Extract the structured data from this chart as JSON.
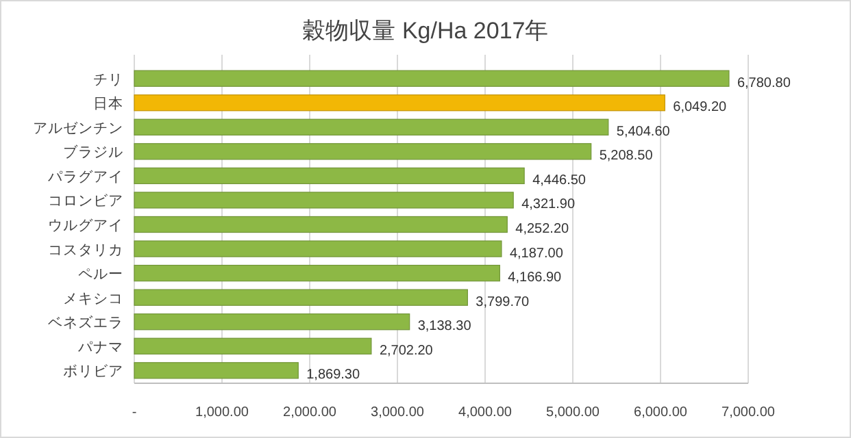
{
  "chart_data": {
    "type": "bar",
    "orientation": "horizontal",
    "title": "穀物収量 Kg/Ha  2017年",
    "categories": [
      "チリ",
      "日本",
      "アルゼンチン",
      "ブラジル",
      "パラグアイ",
      "コロンビア",
      "ウルグアイ",
      "コスタリカ",
      "ペルー",
      "メキシコ",
      "ベネズエラ",
      "パナマ",
      "ボリビア"
    ],
    "values": [
      6780.8,
      6049.2,
      5404.6,
      5208.5,
      4446.5,
      4321.9,
      4252.2,
      4187.0,
      4166.9,
      3799.7,
      3138.3,
      2702.2,
      1869.3
    ],
    "colors": [
      "#8db845",
      "#f2b705",
      "#8db845",
      "#8db845",
      "#8db845",
      "#8db845",
      "#8db845",
      "#8db845",
      "#8db845",
      "#8db845",
      "#8db845",
      "#8db845",
      "#8db845"
    ],
    "value_labels": [
      "6,780.80",
      "6,049.20",
      "5,404.60",
      "5,208.50",
      "4,446.50",
      "4,321.90",
      "4,252.20",
      "4,187.00",
      "4,166.90",
      "3,799.70",
      "3,138.30",
      "2,702.20",
      "1,869.30"
    ],
    "xlim": [
      0,
      7000
    ],
    "xticks": [
      {
        "value": 0,
        "label": "-"
      },
      {
        "value": 1000,
        "label": "1,000.00"
      },
      {
        "value": 2000,
        "label": "2,000.00"
      },
      {
        "value": 3000,
        "label": "3,000.00"
      },
      {
        "value": 4000,
        "label": "4,000.00"
      },
      {
        "value": 5000,
        "label": "5,000.00"
      },
      {
        "value": 6000,
        "label": "6,000.00"
      },
      {
        "value": 7000,
        "label": "7,000.00"
      }
    ],
    "grid": "x"
  }
}
